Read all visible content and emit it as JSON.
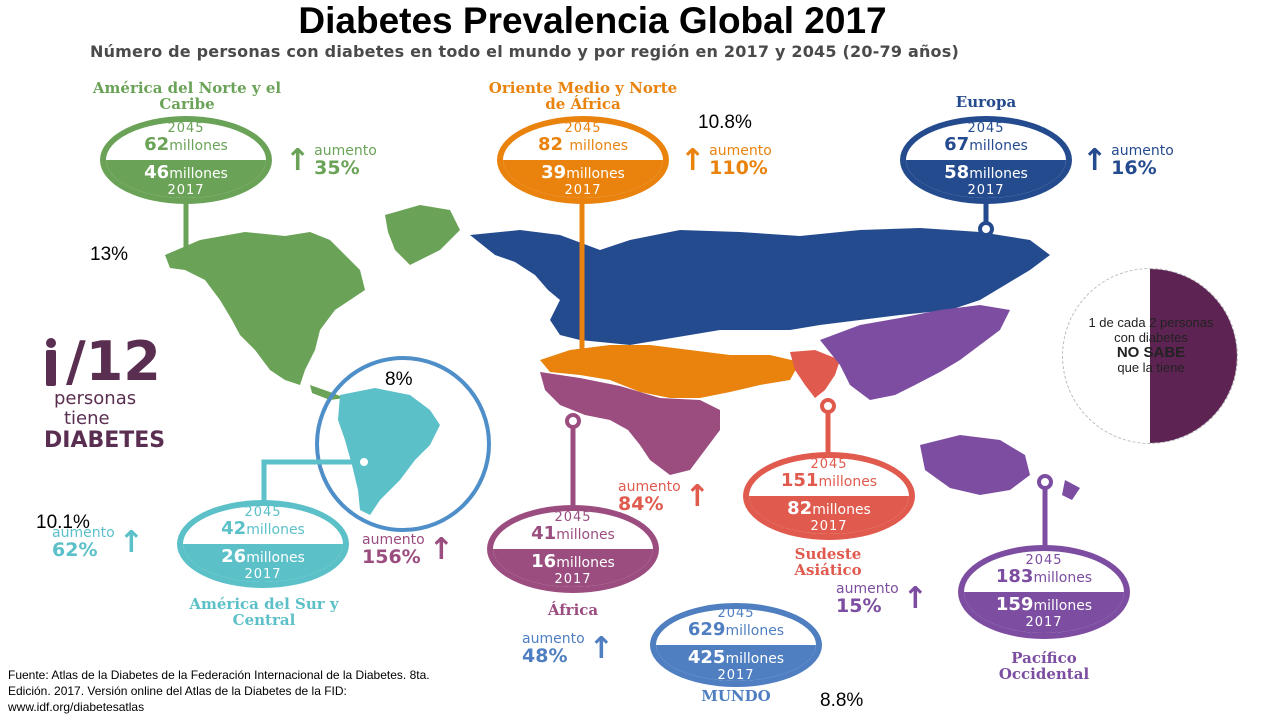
{
  "title": "Diabetes Prevalencia Global 2017",
  "subtitle": "Número de personas con diabetes en todo el mundo y por región en 2017 y 2045 (20-79 años)",
  "regions": {
    "nac": {
      "name": "América del Norte y el Caribe",
      "y2045": "62",
      "y2017": "46",
      "increase": "35%",
      "color": "#6aa357"
    },
    "mena": {
      "name": "Oriente Medio y Norte de África",
      "y2045": "82",
      "y2017": "39",
      "increase": "110%",
      "color": "#e9830e"
    },
    "eur": {
      "name": "Europa",
      "y2045": "67",
      "y2017": "58",
      "increase": "16%",
      "color": "#254b8f"
    },
    "sacA": {
      "name": "América del Sur y Central",
      "y2045": "42",
      "y2017": "26",
      "increase": "62%",
      "color": "#5bc0c8"
    },
    "afr": {
      "name": "África",
      "y2045": "41",
      "y2017": "16",
      "increase": "156%",
      "color": "#9b4d80"
    },
    "sea": {
      "name": "Sudeste Asiático",
      "y2045": "151",
      "y2017": "82",
      "increase": "84%",
      "color": "#e05a4e"
    },
    "wp": {
      "name": "Pacífico Occidental",
      "y2045": "183",
      "y2017": "159",
      "increase": "15%",
      "color": "#7c4da0"
    },
    "world": {
      "name": "MUNDO",
      "y2045": "629",
      "y2017": "425",
      "increase": "48%",
      "color": "#4f7fc1"
    }
  },
  "labels": {
    "year_2045": "2045",
    "year_2017": "2017",
    "millions": "millones",
    "increase": "aumento",
    "arrow": "↑"
  },
  "prevalence": {
    "mena": "10.8%",
    "nac": "13%",
    "sac": "8%",
    "sac2": "10.1%",
    "world": "8.8%"
  },
  "one_in": {
    "ratio": "/12",
    "line1": "personas",
    "line2": "tiene",
    "line3": "DIABETES"
  },
  "no_sabe": {
    "line1": "1 de cada 2 personas",
    "line2": "con diabetes",
    "line3": "NO SABE",
    "line4": "que la tiene"
  },
  "source": {
    "line1": "Fuente: Atlas de la Diabetes de la Federación Internacional  de la Diabetes. 8ta.",
    "line2": "Edición. 2017. Versión online del Atlas de la Diabetes de la FID:",
    "line3": "www.idf.org/diabetesatlas"
  }
}
